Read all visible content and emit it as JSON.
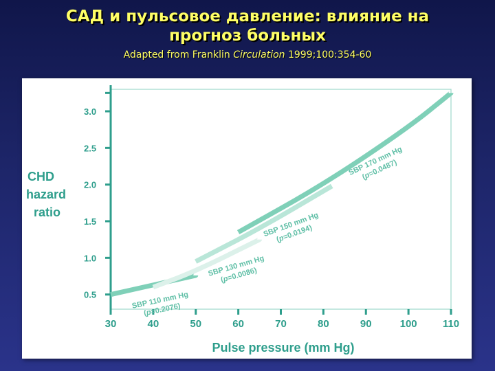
{
  "slide": {
    "title_line1": "САД и пульсовое давление: влияние на",
    "title_line2": "прогноз больных",
    "subtitle_prefix": "Adapted from Franklin ",
    "subtitle_journal": "Circulation",
    "subtitle_suffix": " 1999;100:354-60"
  },
  "colors": {
    "title": "#ffff66",
    "axis_text": "#2e9e8c",
    "frame": "#9ed9cc",
    "sbp110": "#7fd0b8",
    "sbp130": "#dcf1ea",
    "sbp150": "#b9e6d8",
    "sbp170": "#7fd0b8",
    "label_text": "#5fbfa6"
  },
  "chart_data": {
    "type": "line",
    "title": "",
    "xlabel": "Pulse pressure (mm Hg)",
    "ylabel_lines": [
      "CHD",
      "hazard",
      "ratio"
    ],
    "xlim": [
      30,
      110
    ],
    "ylim": [
      0.3,
      3.3
    ],
    "x_ticks": [
      30,
      40,
      50,
      60,
      70,
      80,
      90,
      100,
      110
    ],
    "y_ticks": [
      0.5,
      1.0,
      1.5,
      2.0,
      2.5,
      3.0
    ],
    "y_tick_labels": [
      "0.5",
      "1.0",
      "1.5",
      "2.0",
      "2.5",
      "3.0"
    ],
    "series": [
      {
        "name": "SBP 110 mm Hg",
        "p_label": "=0.2076)",
        "color": "#7fd0b8",
        "x": [
          30,
          40,
          50
        ],
        "y": [
          0.5,
          0.63,
          0.76
        ]
      },
      {
        "name": "SBP 130 mm Hg",
        "p_label": "=0.0086)",
        "color": "#dcf1ea",
        "x": [
          40,
          50,
          65
        ],
        "y": [
          0.6,
          0.82,
          1.25
        ]
      },
      {
        "name": "SBP 150 mm Hg",
        "p_label": "=0.0194)",
        "color": "#b9e6d8",
        "x": [
          50,
          65,
          82
        ],
        "y": [
          0.95,
          1.4,
          1.98
        ]
      },
      {
        "name": "SBP 170 mm Hg",
        "p_label": "=0.0487)",
        "color": "#7fd0b8",
        "x": [
          60,
          80,
          100,
          110
        ],
        "y": [
          1.35,
          2.0,
          2.78,
          3.25
        ]
      }
    ]
  }
}
